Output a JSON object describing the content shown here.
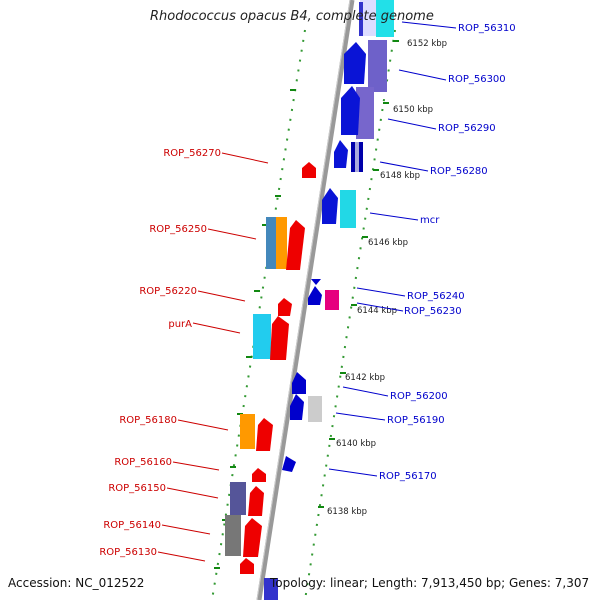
{
  "title": "Rhodococcus opacus B4, complete genome",
  "accession": "Accession: NC_012522",
  "topology": "Topology: linear; Length: 7,913,450 bp; Genes: 7,307",
  "colors": {
    "left_label": "#cc0000",
    "right_label": "#0000cc",
    "axis": "#888888",
    "tick_dots": "#339933",
    "tick_major": "#118811"
  },
  "kbp_labels": [
    "6152 kbp",
    "6150 kbp",
    "6148 kbp",
    "6146 kbp",
    "6144 kbp",
    "6142 kbp",
    "6140 kbp",
    "6138 kbp"
  ],
  "left_genes": [
    "ROP_56270",
    "ROP_56250",
    "ROP_56220",
    "purA",
    "ROP_56180",
    "ROP_56160",
    "ROP_56150",
    "ROP_56140",
    "ROP_56130"
  ],
  "right_genes": [
    "ROP_56310",
    "ROP_56300",
    "ROP_56290",
    "ROP_56280",
    "mcr",
    "ROP_56240",
    "ROP_56230",
    "ROP_56200",
    "ROP_56190",
    "ROP_56170"
  ]
}
